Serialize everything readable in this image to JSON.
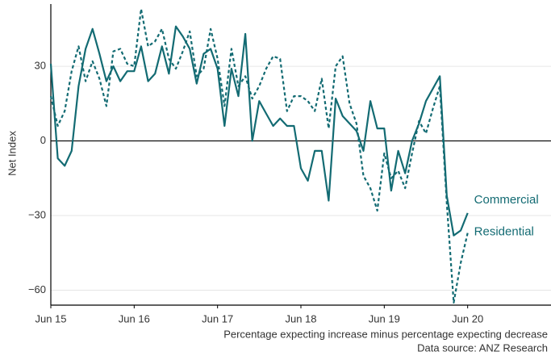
{
  "chart_data": {
    "type": "line",
    "y_label": "Net Index",
    "caption": [
      "Percentage expecting increase minus percentage expecting decrease",
      "Data source: ANZ Research"
    ],
    "x": [
      "2015-06",
      "2015-07",
      "2015-08",
      "2015-09",
      "2015-10",
      "2015-11",
      "2015-12",
      "2016-01",
      "2016-02",
      "2016-03",
      "2016-04",
      "2016-05",
      "2016-06",
      "2016-07",
      "2016-08",
      "2016-09",
      "2016-10",
      "2016-11",
      "2016-12",
      "2017-01",
      "2017-02",
      "2017-03",
      "2017-04",
      "2017-05",
      "2017-06",
      "2017-07",
      "2017-08",
      "2017-09",
      "2017-10",
      "2017-11",
      "2017-12",
      "2018-01",
      "2018-02",
      "2018-03",
      "2018-04",
      "2018-05",
      "2018-06",
      "2018-07",
      "2018-08",
      "2018-09",
      "2018-10",
      "2018-11",
      "2018-12",
      "2019-01",
      "2019-02",
      "2019-03",
      "2019-04",
      "2019-05",
      "2019-06",
      "2019-07",
      "2019-08",
      "2019-09",
      "2019-10",
      "2019-11",
      "2019-12",
      "2020-01",
      "2020-02",
      "2020-03",
      "2020-04",
      "2020-05",
      "2020-06"
    ],
    "series": [
      {
        "name": "Commercial",
        "color": "#136b73",
        "dash": false,
        "values": [
          31,
          -7,
          -10,
          -4,
          22,
          37,
          45,
          35,
          24,
          30,
          24,
          28,
          28,
          38,
          24,
          27,
          38,
          27,
          46,
          42,
          37,
          23,
          35,
          37,
          29,
          6,
          29,
          18,
          43,
          0,
          16,
          11,
          6,
          9,
          6,
          6,
          -11,
          -16,
          -4,
          -4,
          -24,
          17,
          10,
          7,
          4,
          -4,
          16,
          5,
          5,
          -20,
          -4,
          -13,
          0,
          7,
          16,
          21,
          26,
          -22,
          -38,
          -36,
          -29
        ]
      },
      {
        "name": "Residential",
        "color": "#136b73",
        "dash": true,
        "values": [
          18,
          6,
          12,
          28,
          38,
          24,
          32,
          25,
          14,
          36,
          37,
          31,
          30,
          53,
          38,
          40,
          45,
          33,
          29,
          36,
          44,
          26,
          29,
          45,
          33,
          14,
          37,
          22,
          26,
          17,
          22,
          29,
          34,
          33,
          12,
          18,
          18,
          16,
          12,
          25,
          5,
          30,
          34,
          15,
          7,
          -14,
          -19,
          -28,
          -5,
          -15,
          -12,
          -19,
          -5,
          8,
          3,
          13,
          22,
          -25,
          -65,
          -49,
          -37
        ]
      }
    ],
    "xlim": [
      "2015-06",
      "2021-06"
    ],
    "xticks": [
      {
        "value": "2015-06",
        "label": "Jun 15"
      },
      {
        "value": "2016-06",
        "label": "Jun 16"
      },
      {
        "value": "2017-06",
        "label": "Jun 17"
      },
      {
        "value": "2018-06",
        "label": "Jun 18"
      },
      {
        "value": "2019-06",
        "label": "Jun 19"
      },
      {
        "value": "2020-06",
        "label": "Jun 20"
      }
    ],
    "ylim": [
      -66,
      55
    ],
    "yticks": [
      {
        "value": -60,
        "label": "−60"
      },
      {
        "value": -30,
        "label": "−30"
      },
      0,
      30
    ],
    "grid": true
  }
}
